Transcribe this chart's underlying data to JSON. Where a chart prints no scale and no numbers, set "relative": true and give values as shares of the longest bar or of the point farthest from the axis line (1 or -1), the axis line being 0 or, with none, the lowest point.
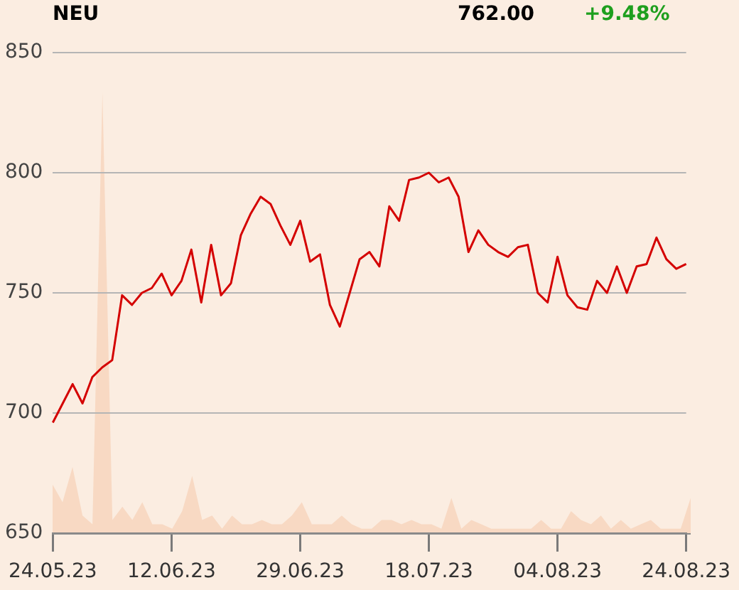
{
  "chart_data": [
    {
      "type": "line",
      "title": "NEU",
      "annotations": [
        "762.00",
        "+9.48%"
      ],
      "categories": [
        "24.05.23",
        null,
        null,
        null,
        null,
        null,
        null,
        null,
        null,
        null,
        null,
        null,
        "12.06.23",
        null,
        null,
        null,
        null,
        null,
        null,
        null,
        null,
        null,
        null,
        null,
        null,
        "29.06.23",
        null,
        null,
        null,
        null,
        null,
        null,
        null,
        null,
        null,
        null,
        null,
        null,
        "18.07.23",
        null,
        null,
        null,
        null,
        null,
        null,
        null,
        null,
        null,
        null,
        null,
        null,
        "04.08.23",
        null,
        null,
        null,
        null,
        null,
        null,
        null,
        null,
        null,
        null,
        null,
        null,
        "24.08.23"
      ],
      "color": "#d40000",
      "values": [
        696,
        704,
        712,
        704,
        715,
        719,
        722,
        749,
        745,
        750,
        752,
        758,
        749,
        755,
        768,
        746,
        770,
        749,
        754,
        774,
        783,
        790,
        787,
        778,
        770,
        780,
        763,
        766,
        745,
        736,
        750,
        764,
        767,
        761,
        786,
        780,
        797,
        798,
        800,
        796,
        798,
        790,
        767,
        776,
        770,
        767,
        765,
        769,
        770,
        750,
        746,
        765,
        749,
        744,
        743,
        755,
        750,
        761,
        750,
        761,
        762,
        773,
        764,
        760,
        762
      ],
      "ylim": [
        650,
        850
      ],
      "yticks": [
        650,
        700,
        750,
        800,
        850
      ],
      "grid": "y"
    },
    {
      "type": "area",
      "relative": true,
      "tick_labels": false,
      "categories": [
        "24.05.23",
        null,
        null,
        null,
        null,
        null,
        null,
        null,
        null,
        null,
        null,
        null,
        "12.06.23",
        null,
        null,
        null,
        null,
        null,
        null,
        null,
        null,
        null,
        null,
        null,
        null,
        "29.06.23",
        null,
        null,
        null,
        null,
        null,
        null,
        null,
        null,
        null,
        null,
        null,
        null,
        "18.07.23",
        null,
        null,
        null,
        null,
        null,
        null,
        null,
        null,
        null,
        null,
        null,
        null,
        "04.08.23",
        null,
        null,
        null,
        null,
        null,
        null,
        null,
        null,
        null,
        null,
        null,
        null,
        "24.08.23"
      ],
      "color": "#f8d9c3",
      "values": [
        0.11,
        0.07,
        0.15,
        0.04,
        0.02,
        1,
        0.03,
        0.06,
        0.03,
        0.07,
        0.02,
        0.02,
        0.01,
        0.05,
        0.13,
        0.03,
        0.04,
        0.01,
        0.04,
        0.02,
        0.02,
        0.03,
        0.02,
        0.02,
        0.04,
        0.07,
        0.02,
        0.02,
        0.02,
        0.04,
        0.02,
        0.01,
        0.01,
        0.03,
        0.03,
        0.02,
        0.03,
        0.02,
        0.02,
        0.01,
        0.08,
        0.01,
        0.03,
        0.02,
        0.01,
        0.01,
        0.01,
        0.01,
        0.01,
        0.03,
        0.01,
        0.01,
        0.05,
        0.03,
        0.02,
        0.04,
        0.01,
        0.03,
        0.01,
        0.02,
        0.03,
        0.01,
        0.01,
        0.01,
        0.08
      ]
    }
  ]
}
